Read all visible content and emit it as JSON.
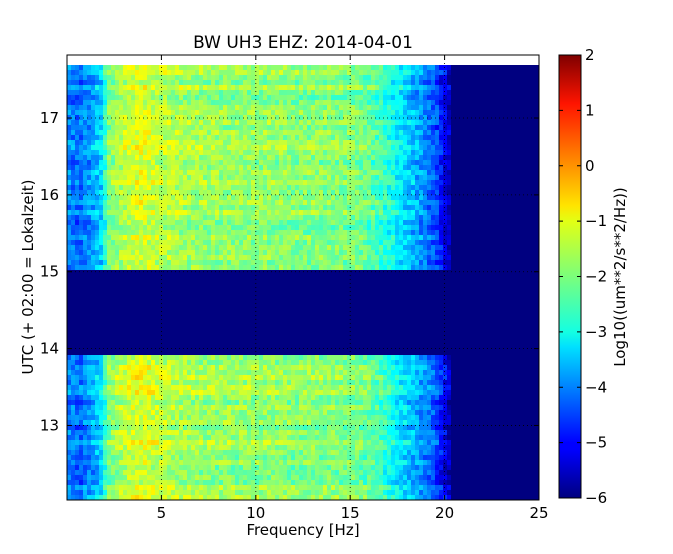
{
  "chart_data": {
    "type": "heatmap",
    "title": "BW UH3 EHZ: 2014-04-01",
    "xlabel": "Frequency [Hz]",
    "ylabel": "UTC (+ 02:00 = Lokalzeit)",
    "xlim": [
      0,
      25
    ],
    "ylim": [
      17.82,
      12.03
    ],
    "x_ticks": [
      "5",
      "10",
      "15",
      "20",
      "25"
    ],
    "x_tick_values": [
      5,
      10,
      15,
      20,
      25
    ],
    "y_ticks": [
      "13",
      "14",
      "15",
      "16",
      "17"
    ],
    "y_tick_values": [
      13,
      14,
      15,
      16,
      17
    ],
    "grid": true,
    "colormap": "jet",
    "colorbar": {
      "label": "Log10((um**2/s**2/Hz))",
      "range": [
        -6,
        2
      ],
      "ticks": [
        "2",
        "1",
        "0",
        "−1",
        "−2",
        "−3",
        "−4",
        "−5",
        "−6"
      ],
      "tick_values": [
        2,
        1,
        0,
        -1,
        -2,
        -3,
        -4,
        -5,
        -6
      ]
    },
    "data_gaps": [
      {
        "from_hour": 13.93,
        "to_hour": 15.02
      },
      {
        "from_hour": 17.68,
        "to_hour": 17.82
      }
    ],
    "spectral_profile": {
      "description": "Log10 PSD vs frequency",
      "frequency_hz": [
        0.0,
        0.6,
        1.2,
        1.8,
        2.2,
        3.0,
        4.0,
        5.0,
        6.5,
        8.0,
        10.0,
        12.0,
        14.0,
        15.5,
        16.5,
        17.5,
        18.5,
        19.5,
        20.2,
        21.0,
        25.0
      ],
      "log10_psd": [
        -3.9,
        -4.2,
        -3.8,
        -3.3,
        -2.0,
        -1.5,
        -1.2,
        -1.5,
        -1.7,
        -1.8,
        -1.8,
        -1.9,
        -1.9,
        -2.0,
        -2.4,
        -3.0,
        -3.6,
        -4.3,
        -5.4,
        -6.0,
        -6.0
      ]
    }
  }
}
